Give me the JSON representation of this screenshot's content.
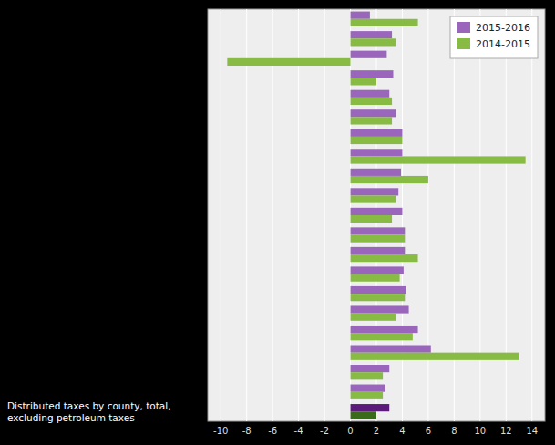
{
  "chart_data": {
    "type": "bar",
    "orientation": "horizontal",
    "categories": [
      null,
      null,
      null,
      null,
      null,
      null,
      null,
      null,
      null,
      null,
      null,
      null,
      null,
      null,
      null,
      null,
      null,
      null,
      null,
      null,
      "Distributed taxes by county, total,\nexcluding petroleum taxes"
    ],
    "series": [
      {
        "name": "2015-2016",
        "color": "#9966bb",
        "colors": [
          "#9966bb",
          "#9966bb",
          "#9966bb",
          "#9966bb",
          "#9966bb",
          "#9966bb",
          "#9966bb",
          "#9966bb",
          "#9966bb",
          "#9966bb",
          "#9966bb",
          "#9966bb",
          "#9966bb",
          "#9966bb",
          "#9966bb",
          "#9966bb",
          "#9966bb",
          "#9966bb",
          "#9966bb",
          "#9966bb",
          "#5c1a7a"
        ],
        "values": [
          1.5,
          3.2,
          2.8,
          3.3,
          3.0,
          3.5,
          4.0,
          4.0,
          3.9,
          3.7,
          4.0,
          4.2,
          4.2,
          4.1,
          4.3,
          4.5,
          5.2,
          6.2,
          3.0,
          2.7,
          3.0
        ]
      },
      {
        "name": "2014-2015",
        "color": "#88bb44",
        "colors": [
          "#88bb44",
          "#88bb44",
          "#88bb44",
          "#88bb44",
          "#88bb44",
          "#88bb44",
          "#88bb44",
          "#88bb44",
          "#88bb44",
          "#88bb44",
          "#88bb44",
          "#88bb44",
          "#88bb44",
          "#88bb44",
          "#88bb44",
          "#88bb44",
          "#88bb44",
          "#88bb44",
          "#88bb44",
          "#88bb44",
          "#3a6b1a"
        ],
        "values": [
          5.2,
          3.5,
          -9.5,
          2.0,
          3.2,
          3.2,
          4.0,
          13.5,
          6.0,
          3.5,
          3.2,
          4.2,
          5.2,
          3.8,
          4.2,
          3.5,
          4.8,
          13.0,
          2.5,
          2.5,
          2.0
        ]
      }
    ],
    "xlim": [
      -11,
      15
    ],
    "xticks": [
      -10,
      -8,
      -6,
      -4,
      -2,
      0,
      2,
      4,
      6,
      8,
      10,
      12,
      14
    ],
    "grid": true,
    "legend": "upper right"
  }
}
